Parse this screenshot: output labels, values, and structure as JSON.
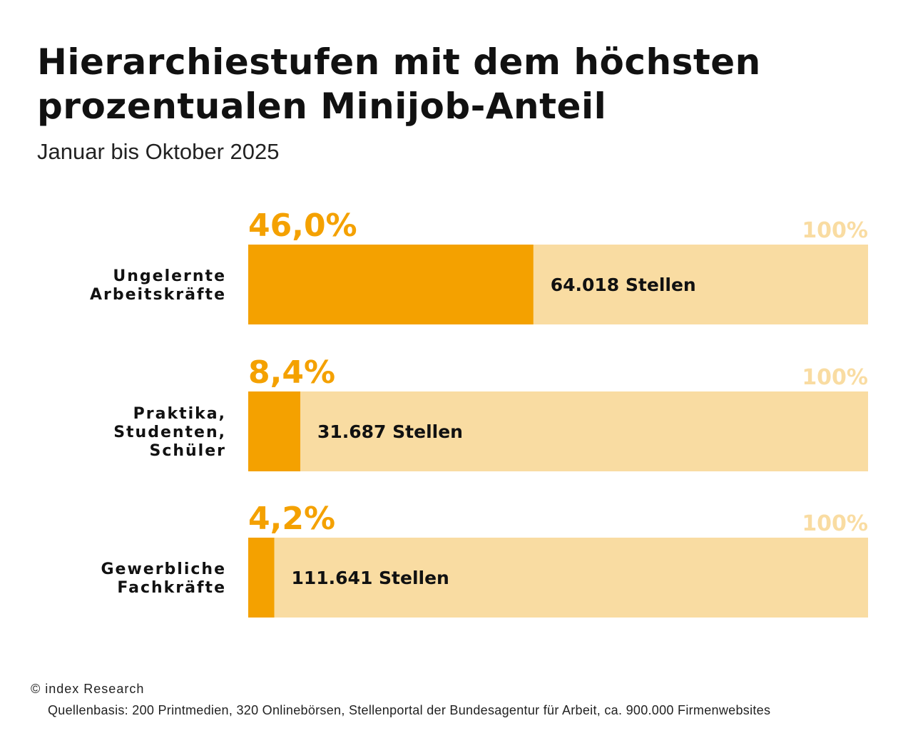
{
  "title": "Hierarchiestufen mit dem höchsten prozentualen Minijob-Anteil",
  "subtitle": "Januar bis Oktober 2025",
  "footer": {
    "copyright": "© index Research",
    "source": "Quellenbasis: 200 Printmedien, 320 Onlinebörsen, Stellenportal der Bundesagentur für Arbeit, ca. 900.000 Firmenwebsites"
  },
  "colors": {
    "value": "#f4a100",
    "remainder": "#f9dca2",
    "max_label": "#f9dca2"
  },
  "chart_data": {
    "type": "bar",
    "orientation": "horizontal",
    "stacked_to_100": true,
    "xlim": [
      0,
      100
    ],
    "max_label": "100%",
    "categories": [
      [
        "Ungelernte",
        "Arbeitskräfte"
      ],
      [
        "Praktika,",
        "Studenten,",
        "Schüler"
      ],
      [
        "Gewerbliche",
        "Fachkräfte"
      ]
    ],
    "values": [
      46.0,
      8.4,
      4.2
    ],
    "value_labels": [
      "46,0%",
      "8,4%",
      "4,2%"
    ],
    "count_labels": [
      "64.018 Stellen",
      "31.687 Stellen",
      "111.641 Stellen"
    ]
  }
}
